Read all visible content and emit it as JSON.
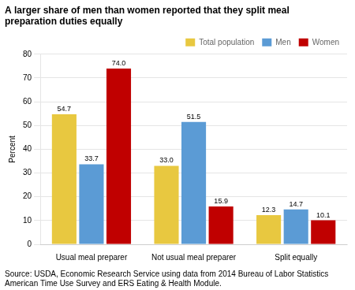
{
  "chart_data": {
    "type": "bar",
    "title": "A larger share of men than women reported that they split meal preparation duties equally",
    "ylabel": "Percent",
    "source": "Source: USDA, Economic Research Service using data from 2014 Bureau of Labor Statistics\nAmerican Time Use Survey and ERS Eating & Health Module.",
    "categories": [
      "Usual meal preparer",
      "Not usual meal preparer",
      "Split equally"
    ],
    "series": [
      {
        "name": "Total population",
        "color": "#E8C840",
        "values": [
          54.7,
          33.0,
          12.3
        ],
        "value_labels": [
          "54.7",
          "33.0",
          "12.3"
        ]
      },
      {
        "name": "Men",
        "color": "#5B9BD5",
        "values": [
          33.7,
          51.5,
          14.7
        ]
      },
      {
        "name": "Women",
        "color": "#C00000",
        "values": [
          74.0,
          15.9,
          10.1
        ],
        "value_labels": [
          "74.0",
          "15.9",
          "10.1"
        ]
      }
    ],
    "ylim": [
      0,
      80
    ],
    "yticks": [
      0,
      10,
      20,
      30,
      40,
      50,
      60,
      70,
      80
    ],
    "grid": true,
    "legend": "upper right",
    "data_labels": true
  }
}
